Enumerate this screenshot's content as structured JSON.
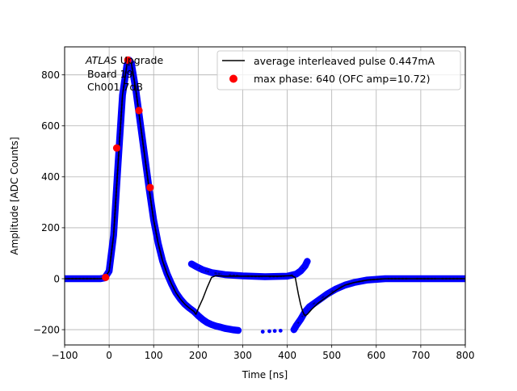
{
  "chart_data": {
    "type": "scatter",
    "xlabel": "Time [ns]",
    "ylabel": "Amplitude [ADC Counts]",
    "xlim": [
      -100,
      800
    ],
    "ylim": [
      -260,
      910
    ],
    "xticks": [
      -100,
      0,
      100,
      200,
      300,
      400,
      500,
      600,
      700,
      800
    ],
    "yticks": [
      -200,
      0,
      200,
      400,
      600,
      800
    ],
    "xtick_labels": [
      "−100",
      "0",
      "100",
      "200",
      "300",
      "400",
      "500",
      "600",
      "700",
      "800"
    ],
    "ytick_labels": [
      "−200",
      "0",
      "200",
      "400",
      "600",
      "800"
    ],
    "grid": true,
    "legend_position": "top-right",
    "annotation": {
      "line1_italic": "ATLAS",
      "line1_rest": " Upgrade",
      "line2": " Board 19",
      "line3": " Ch001 7dB"
    },
    "colors": {
      "samples": "#0000ff",
      "samples_edge": "#000080",
      "average": "#000000",
      "max_phase": "#ff0000"
    },
    "series": [
      {
        "name": "average interleaved pulse 0.447mA",
        "kind": "line",
        "x": [
          -100,
          -20,
          -10,
          0,
          10,
          20,
          30,
          40,
          45,
          50,
          60,
          70,
          80,
          90,
          100,
          110,
          120,
          130,
          140,
          150,
          160,
          170,
          180,
          190,
          195,
          200,
          210,
          220,
          230,
          240,
          260,
          300,
          350,
          380,
          410,
          418,
          425,
          430,
          435,
          440,
          445,
          455,
          470,
          490,
          510,
          530,
          550,
          580,
          620,
          680,
          740,
          800
        ],
        "y": [
          0,
          0,
          3,
          30,
          170,
          450,
          720,
          840,
          858,
          845,
          740,
          610,
          480,
          350,
          230,
          140,
          70,
          20,
          -20,
          -55,
          -80,
          -100,
          -115,
          -128,
          -140,
          -118,
          -80,
          -35,
          5,
          12,
          10,
          10,
          10,
          10,
          12,
          5,
          -60,
          -100,
          -130,
          -145,
          -140,
          -120,
          -95,
          -70,
          -45,
          -25,
          -15,
          -5,
          0,
          0,
          0,
          0
        ]
      },
      {
        "name": "",
        "kind": "samples",
        "segments": [
          {
            "x": [
              -100,
              -20,
              -10,
              0,
              10,
              20,
              30,
              40,
              45,
              50,
              60,
              70,
              80,
              90,
              100,
              110,
              120,
              130,
              140,
              150,
              160,
              170,
              180,
              190,
              200,
              210,
              220,
              230,
              240,
              250,
              260,
              270,
              280,
              290
            ],
            "y": [
              0,
              0,
              3,
              30,
              170,
              450,
              720,
              840,
              858,
              845,
              740,
              610,
              480,
              350,
              230,
              140,
              70,
              20,
              -20,
              -55,
              -80,
              -100,
              -115,
              -128,
              -145,
              -160,
              -172,
              -180,
              -186,
              -190,
              -195,
              -198,
              -201,
              -203
            ]
          },
          {
            "x": [
              185,
              195,
              210,
              230,
              260,
              300,
              350,
              400,
              420,
              430,
              440,
              445
            ],
            "y": [
              58,
              48,
              35,
              24,
              16,
              11,
              8,
              10,
              18,
              30,
              50,
              68
            ]
          },
          {
            "x": [
              415,
              420,
              430,
              440,
              450,
              470,
              490,
              510,
              530,
              550,
              580,
              620,
              680,
              740,
              800
            ],
            "y": [
              -200,
              -185,
              -160,
              -130,
              -110,
              -85,
              -60,
              -40,
              -25,
              -15,
              -5,
              0,
              0,
              0,
              0
            ]
          }
        ],
        "isolated": {
          "x": [
            345,
            360,
            372,
            385
          ],
          "y": [
            -208,
            -206,
            -205,
            -204
          ]
        }
      },
      {
        "name": "max phase: 640 (OFC amp=10.72)",
        "kind": "points",
        "x": [
          -8,
          17,
          42,
          67,
          92
        ],
        "y": [
          5,
          513,
          858,
          660,
          358
        ]
      }
    ]
  }
}
